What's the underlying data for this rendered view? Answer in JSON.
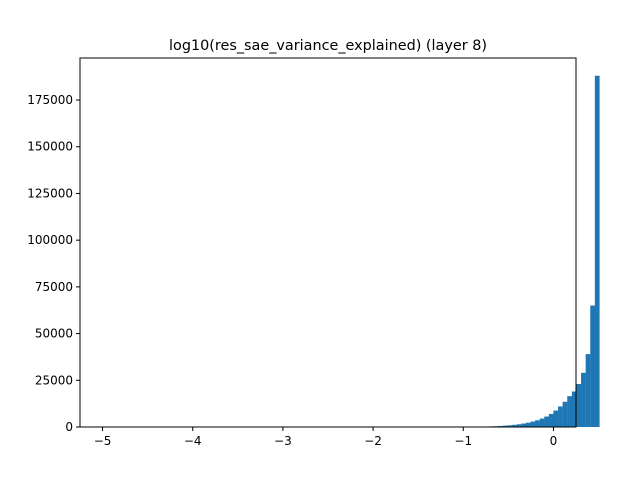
{
  "chart_data": {
    "type": "bar",
    "title": "log10(res_sae_variance_explained) (layer 8)",
    "xlabel": "",
    "ylabel": "",
    "xlim": [
      -5.25,
      0.25
    ],
    "ylim": [
      0,
      197500
    ],
    "xticks": [
      -5,
      -4,
      -3,
      -2,
      -1,
      0
    ],
    "xtick_labels": [
      "−5",
      "−4",
      "−3",
      "−2",
      "−1",
      "0"
    ],
    "yticks": [
      0,
      25000,
      50000,
      75000,
      100000,
      125000,
      150000,
      175000
    ],
    "ytick_labels": [
      "0",
      "25000",
      "50000",
      "75000",
      "100000",
      "125000",
      "150000",
      "175000"
    ],
    "grid": false,
    "bar_color": "#1f77b4",
    "bins": {
      "start": -5.1,
      "width": 0.051,
      "counts": [
        0,
        0,
        0,
        0,
        0,
        0,
        0,
        0,
        0,
        0,
        0,
        0,
        0,
        0,
        0,
        0,
        0,
        0,
        0,
        0,
        0,
        0,
        0,
        0,
        0,
        0,
        0,
        0,
        0,
        0,
        0,
        0,
        0,
        0,
        0,
        0,
        0,
        0,
        0,
        0,
        0,
        0,
        0,
        0,
        0,
        0,
        0,
        0,
        0,
        0,
        0,
        0,
        0,
        0,
        0,
        0,
        0,
        0,
        0,
        0,
        0,
        0,
        0,
        0,
        0,
        0,
        0,
        0,
        0,
        0,
        0,
        0,
        0,
        0,
        0,
        0,
        0,
        0,
        0,
        0,
        60,
        80,
        110,
        150,
        200,
        250,
        330,
        430,
        560,
        720,
        900,
        1150,
        1450,
        1850,
        2300,
        2900,
        3600,
        4500,
        5600,
        7000,
        8800,
        11000,
        13500,
        16500,
        19000,
        23000,
        29000,
        39000,
        65000,
        188000
      ]
    }
  }
}
